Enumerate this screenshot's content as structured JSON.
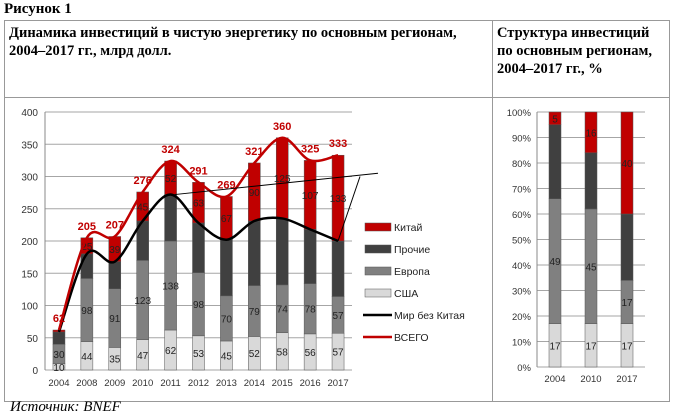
{
  "figure_label": "Рисунок 1",
  "left_header": "Динамика инвестиций в чистую энергетику по основным регионам, 2004–2017 гг., млрд долл.",
  "right_header": "Структура инвестиций по основным регионам, 2004–2017 гг., %",
  "source": "Источник: BNEF",
  "colors": {
    "china": "#c00000",
    "others": "#404040",
    "europe": "#808080",
    "usa": "#d9d9d9",
    "world_ex_china": "#000000",
    "total": "#c00000"
  },
  "chart_data": [
    {
      "type": "bar",
      "stacked": true,
      "title": "Динамика инвестиций в чистую энергетику по основным регионам, 2004–2017 гг., млрд долл.",
      "categories": [
        "2004",
        "2008",
        "2009",
        "2010",
        "2011",
        "2012",
        "2013",
        "2014",
        "2015",
        "2016",
        "2017"
      ],
      "ylim": [
        0,
        400
      ],
      "yticks": [
        0,
        50,
        100,
        150,
        200,
        250,
        300,
        350,
        400
      ],
      "grid": true,
      "legend_position": "right",
      "series": [
        {
          "name": "США",
          "values": [
            10,
            44,
            35,
            47,
            62,
            53,
            45,
            52,
            58,
            56,
            57
          ]
        },
        {
          "name": "Европа",
          "values": [
            30,
            98,
            91,
            123,
            138,
            98,
            70,
            79,
            74,
            78,
            57
          ]
        },
        {
          "name": "Прочие",
          "values": [
            19,
            38,
            42,
            61,
            72,
            77,
            87,
            100,
            103,
            84,
            86
          ]
        },
        {
          "name": "Китай",
          "values": [
            3,
            25,
            39,
            45,
            52,
            63,
            67,
            90,
            125,
            107,
            133
          ]
        }
      ],
      "lines": [
        {
          "name": "Мир без Китая",
          "values": [
            59,
            180,
            168,
            231,
            272,
            228,
            202,
            231,
            235,
            218,
            200
          ]
        },
        {
          "name": "ВСЕГО",
          "values": [
            62,
            205,
            207,
            276,
            324,
            291,
            269,
            321,
            360,
            325,
            333
          ]
        }
      ],
      "labeled": {
        "usa": [
          "10",
          "44",
          "35",
          "47",
          "62",
          "53",
          "45",
          "52",
          "58",
          "56",
          "57"
        ],
        "europe": [
          "30",
          "98",
          "91",
          "123",
          "138",
          "98",
          "70",
          "79",
          "74",
          "78",
          "57"
        ],
        "china": [
          "",
          "25",
          "39",
          "45",
          "52",
          "63",
          "67",
          "90",
          "125",
          "107",
          "133"
        ],
        "total": [
          "62",
          "205",
          "207",
          "276",
          "324",
          "291",
          "269",
          "321",
          "360",
          "325",
          "333"
        ]
      }
    },
    {
      "type": "bar",
      "stacked": true,
      "percent": true,
      "title": "Структура инвестиций по основным регионам, 2004–2017 гг., %",
      "categories": [
        "2004",
        "2010",
        "2017"
      ],
      "ylim": [
        0,
        100
      ],
      "yticks": [
        "0%",
        "10%",
        "20%",
        "30%",
        "40%",
        "50%",
        "60%",
        "70%",
        "80%",
        "90%",
        "100%"
      ],
      "series": [
        {
          "name": "США",
          "values": [
            17,
            17,
            17
          ]
        },
        {
          "name": "Европа",
          "values": [
            49,
            45,
            17
          ]
        },
        {
          "name": "Прочие",
          "values": [
            29,
            22,
            26
          ]
        },
        {
          "name": "Китай",
          "values": [
            5,
            16,
            40
          ]
        }
      ],
      "labeled": {
        "usa": [
          "17",
          "17",
          "17"
        ],
        "europe": [
          "49",
          "45",
          "17"
        ],
        "china": [
          "5",
          "16",
          "40"
        ]
      }
    }
  ]
}
